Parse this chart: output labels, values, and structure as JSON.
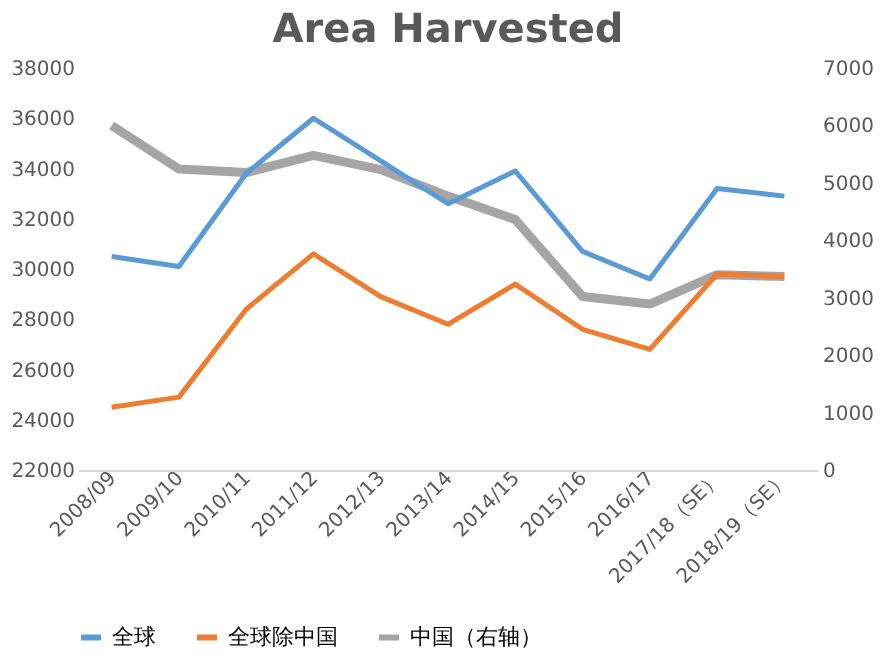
{
  "chart_data": {
    "type": "line",
    "title": "Area Harvested",
    "categories": [
      "2008/09",
      "2009/10",
      "2010/11",
      "2011/12",
      "2012/13",
      "2013/14",
      "2014/15",
      "2015/16",
      "2016/17",
      "2017/18（SE）",
      "2018/19（SE）"
    ],
    "series": [
      {
        "name": "全球",
        "color": "#5b9bd5",
        "values": [
          30500,
          30100,
          33800,
          36000,
          34300,
          32600,
          33900,
          30700,
          29600,
          33200,
          32900
        ]
      },
      {
        "name": "全球除中国",
        "color": "#ed7d31",
        "values": [
          24500,
          24900,
          28400,
          30600,
          28900,
          27800,
          29400,
          27600,
          26800,
          29800,
          29700
        ]
      },
      {
        "name": "中国（右轴）",
        "color": "#a5a5a5",
        "axis": "y2",
        "values": [
          6000,
          5240,
          5180,
          5480,
          5230,
          4770,
          4360,
          3020,
          2890,
          3400,
          3370
        ]
      }
    ],
    "ylim": [
      22000,
      38000
    ],
    "yticks": [
      22000,
      24000,
      26000,
      28000,
      30000,
      32000,
      34000,
      36000,
      38000
    ],
    "y2lim": [
      0,
      7000
    ],
    "y2ticks": [
      0,
      1000,
      2000,
      3000,
      4000,
      5000,
      6000,
      7000
    ],
    "grid": false,
    "legend": "bottom",
    "marker": "none",
    "line_style": "solid"
  }
}
